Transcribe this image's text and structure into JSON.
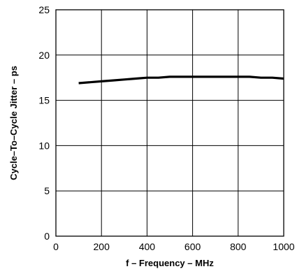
{
  "chart_data": {
    "type": "line",
    "title": "",
    "xlabel": "f – Frequency – MHz",
    "ylabel": "Cycle–To–Cycle Jitter – ps",
    "xlim": [
      0,
      1000
    ],
    "ylim": [
      0,
      25
    ],
    "x_ticks": [
      0,
      200,
      400,
      600,
      800,
      1000
    ],
    "y_ticks": [
      0,
      5,
      10,
      15,
      20,
      25
    ],
    "grid": true,
    "legend": "none",
    "series": [
      {
        "color": "#000000",
        "x": [
          100,
          150,
          200,
          250,
          300,
          350,
          400,
          450,
          500,
          550,
          600,
          650,
          700,
          750,
          800,
          850,
          900,
          950,
          1000
        ],
        "values": [
          16.9,
          17.0,
          17.1,
          17.2,
          17.3,
          17.4,
          17.5,
          17.5,
          17.6,
          17.6,
          17.6,
          17.6,
          17.6,
          17.6,
          17.6,
          17.6,
          17.5,
          17.5,
          17.4
        ]
      }
    ]
  }
}
